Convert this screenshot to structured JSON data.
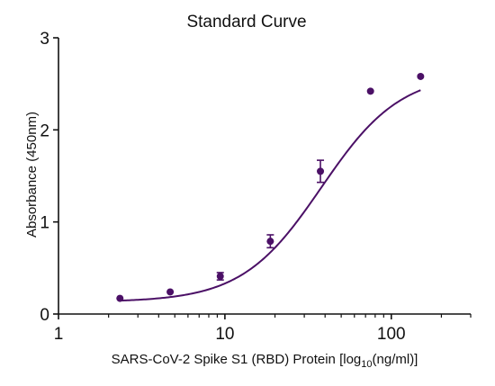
{
  "chart_data": {
    "type": "scatter",
    "title": "Standard Curve",
    "ylabel": "Absorbance (450nm)",
    "xlabel": {
      "prefix": "SARS-CoV-2 Spike S1 (RBD) Protein [log",
      "sub": "10",
      "suffix": "(ng/ml)]"
    },
    "xscale": "log",
    "xlim": [
      1,
      300
    ],
    "ylim": [
      0,
      3
    ],
    "xticks": [
      1,
      10,
      100
    ],
    "xtick_labels": [
      "1",
      "10",
      "100"
    ],
    "yticks": [
      0,
      1,
      2,
      3
    ],
    "ytick_labels": [
      "0",
      "1",
      "2",
      "3"
    ],
    "grid": false,
    "color": "#4b1066",
    "points": [
      {
        "x": 2.34,
        "y": 0.17
      },
      {
        "x": 4.69,
        "y": 0.24
      },
      {
        "x": 9.38,
        "y": 0.41,
        "err": 0.04
      },
      {
        "x": 18.75,
        "y": 0.79,
        "err": 0.07
      },
      {
        "x": 37.5,
        "y": 1.55,
        "err": 0.12
      },
      {
        "x": 75,
        "y": 2.42
      },
      {
        "x": 150,
        "y": 2.58
      }
    ],
    "fit": {
      "model": "4PL",
      "bottom": 0.13,
      "top": 2.62,
      "ec50": 38,
      "hill": 1.82
    }
  }
}
